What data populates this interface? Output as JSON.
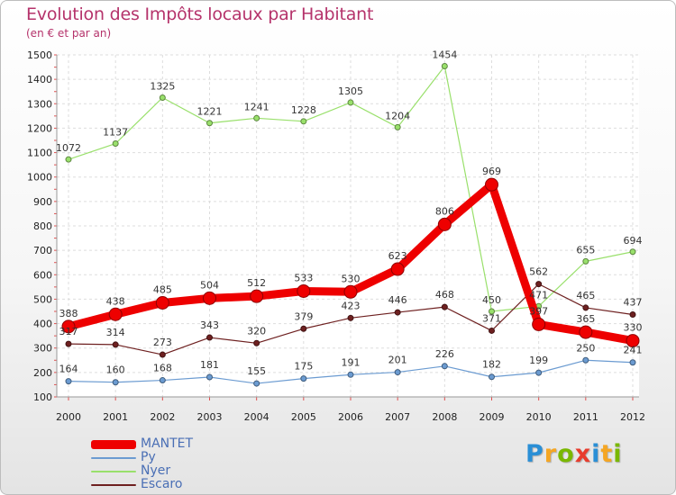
{
  "title": "Evolution des Impôts locaux par Habitant",
  "subtitle": "(en € et par an)",
  "logo": {
    "text": "Proxiti",
    "letters": [
      "P",
      "r",
      "o",
      "x",
      "i",
      "t",
      "i"
    ],
    "colors": [
      "#2a8fd6",
      "#f5a623",
      "#7ab800",
      "#e83c2d",
      "#2a8fd6",
      "#f5a623",
      "#7ab800"
    ]
  },
  "chart_data": {
    "type": "line",
    "title": "Evolution des Impôts locaux par Habitant",
    "subtitle": "(en € et par an)",
    "xlabel": "",
    "ylabel": "",
    "x": [
      2000,
      2001,
      2002,
      2003,
      2004,
      2005,
      2006,
      2007,
      2008,
      2009,
      2010,
      2011,
      2012
    ],
    "ylim": [
      100,
      1500
    ],
    "yticks": [
      100,
      200,
      300,
      400,
      500,
      600,
      700,
      800,
      900,
      1000,
      1100,
      1200,
      1300,
      1400,
      1500
    ],
    "grid": true,
    "legend_position": "bottom-left",
    "series": [
      {
        "name": "MANTET",
        "color": "#ee0000",
        "values": [
          388,
          438,
          485,
          504,
          512,
          533,
          530,
          623,
          806,
          969,
          397,
          365,
          330
        ]
      },
      {
        "name": "Py",
        "color": "#6b9bd1",
        "values": [
          164,
          160,
          168,
          181,
          155,
          175,
          191,
          201,
          226,
          182,
          199,
          250,
          241
        ]
      },
      {
        "name": "Nyer",
        "color": "#99e06b",
        "values": [
          1072,
          1137,
          1325,
          1221,
          1241,
          1228,
          1305,
          1204,
          1454,
          450,
          471,
          655,
          694
        ]
      },
      {
        "name": "Escaro",
        "color": "#6e2020",
        "values": [
          317,
          314,
          273,
          343,
          320,
          379,
          423,
          446,
          468,
          371,
          562,
          465,
          437
        ]
      }
    ]
  }
}
